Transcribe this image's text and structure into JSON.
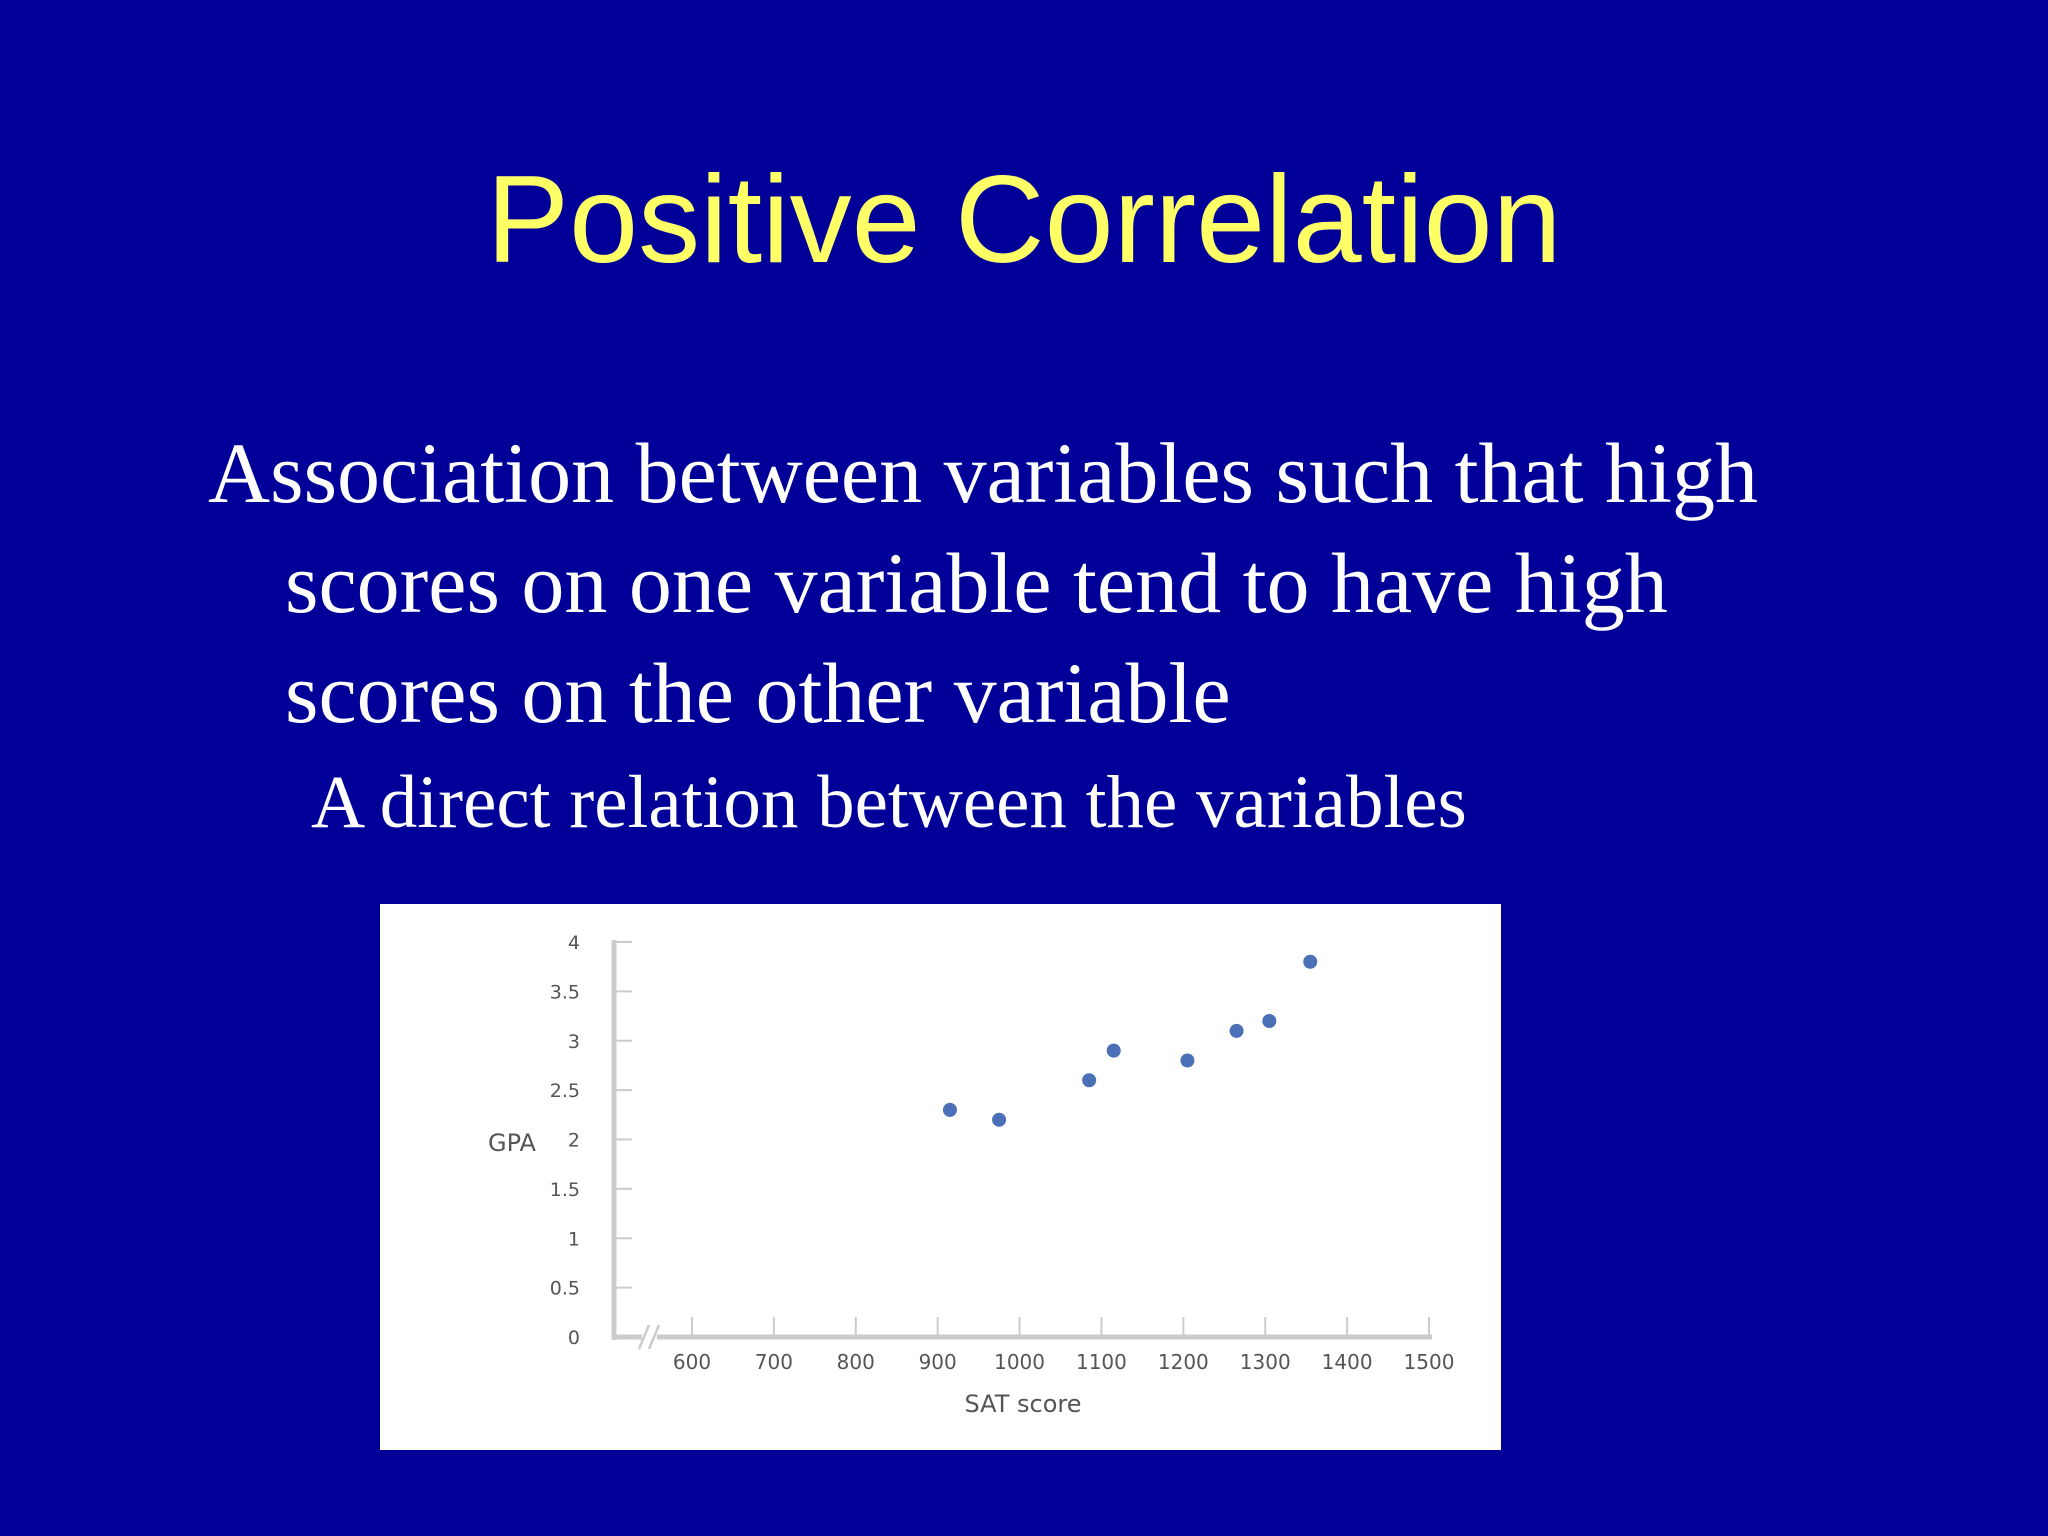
{
  "slide": {
    "title": "Positive Correlation",
    "body_lines": [
      "Association between variables such that high",
      "scores on one variable tend to have high",
      "scores on the other variable"
    ],
    "sub_point": "A direct relation between the variables"
  },
  "colors": {
    "background": "#000099",
    "title": "#ffff66",
    "body": "#ffffff",
    "point": "#4a70b8",
    "axis": "#cccccc"
  },
  "chart_data": {
    "type": "scatter",
    "xlabel": "SAT score",
    "ylabel": "GPA",
    "xlim": [
      600,
      1500
    ],
    "ylim": [
      0,
      4
    ],
    "x_axis_break": true,
    "x_ticks": [
      600,
      700,
      800,
      900,
      1000,
      1100,
      1200,
      1300,
      1400,
      1500
    ],
    "x_tick_labels": [
      "600",
      "700",
      "800",
      "900",
      "1000",
      "1100",
      "1200",
      "1300",
      "1400",
      "1500"
    ],
    "y_ticks": [
      0,
      0.5,
      1,
      1.5,
      2,
      2.5,
      3,
      3.5,
      4
    ],
    "y_tick_labels": [
      "0",
      "0.5",
      "1",
      "1.5",
      "2",
      "2.5",
      "3",
      "3.5",
      "4"
    ],
    "grid": false,
    "points": [
      {
        "x": 915,
        "y": 2.3
      },
      {
        "x": 975,
        "y": 2.2
      },
      {
        "x": 1085,
        "y": 2.6
      },
      {
        "x": 1115,
        "y": 2.9
      },
      {
        "x": 1205,
        "y": 2.8
      },
      {
        "x": 1265,
        "y": 3.1
      },
      {
        "x": 1305,
        "y": 3.2
      },
      {
        "x": 1355,
        "y": 3.8
      }
    ]
  }
}
